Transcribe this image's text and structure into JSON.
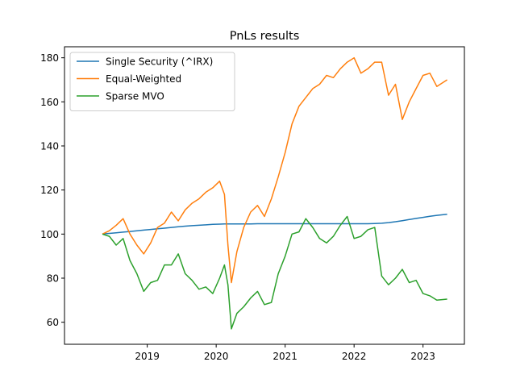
{
  "chart_data": {
    "type": "line",
    "title": "PnLs results",
    "xlabel": "",
    "ylabel": "",
    "x_tick_labels": [
      "2019",
      "2020",
      "2021",
      "2022",
      "2023"
    ],
    "x_ticks": [
      2019.0,
      2020.0,
      2021.0,
      2022.0,
      2023.0
    ],
    "xlim": [
      2017.8,
      2023.6
    ],
    "y_ticks": [
      60,
      80,
      100,
      120,
      140,
      160,
      180
    ],
    "ylim": [
      50,
      185
    ],
    "legend_position": "upper-left",
    "grid": false,
    "x": [
      2018.35,
      2018.45,
      2018.55,
      2018.65,
      2018.75,
      2018.85,
      2018.95,
      2019.05,
      2019.15,
      2019.25,
      2019.35,
      2019.45,
      2019.55,
      2019.65,
      2019.75,
      2019.85,
      2019.95,
      2020.05,
      2020.12,
      2020.17,
      2020.22,
      2020.3,
      2020.4,
      2020.5,
      2020.6,
      2020.7,
      2020.8,
      2020.9,
      2021.0,
      2021.1,
      2021.2,
      2021.3,
      2021.4,
      2021.5,
      2021.6,
      2021.7,
      2021.8,
      2021.9,
      2022.0,
      2022.1,
      2022.2,
      2022.3,
      2022.4,
      2022.5,
      2022.6,
      2022.7,
      2022.8,
      2022.9,
      2023.0,
      2023.1,
      2023.2,
      2023.35
    ],
    "series": [
      {
        "name": "Single Security (^IRX)",
        "color": "#1f77b4",
        "values": [
          100.0,
          100.3,
          100.6,
          100.9,
          101.2,
          101.5,
          101.8,
          102.1,
          102.4,
          102.7,
          103.0,
          103.3,
          103.6,
          103.8,
          104.0,
          104.2,
          104.4,
          104.5,
          104.6,
          104.6,
          104.6,
          104.6,
          104.6,
          104.6,
          104.7,
          104.7,
          104.7,
          104.7,
          104.7,
          104.7,
          104.7,
          104.7,
          104.7,
          104.7,
          104.7,
          104.7,
          104.7,
          104.7,
          104.7,
          104.7,
          104.7,
          104.8,
          104.9,
          105.2,
          105.6,
          106.1,
          106.6,
          107.1,
          107.6,
          108.1,
          108.5,
          109.0
        ]
      },
      {
        "name": "Equal-Weighted",
        "color": "#ff7f0e",
        "values": [
          100.0,
          101.5,
          104.0,
          107.0,
          100.0,
          95.0,
          91.0,
          96.0,
          103.0,
          105.0,
          110.0,
          106.0,
          111.0,
          114.0,
          116.0,
          119.0,
          121.0,
          124.0,
          118.0,
          95.0,
          78.0,
          92.0,
          103.0,
          110.0,
          113.0,
          108.0,
          116.0,
          126.0,
          137.0,
          150.0,
          158.0,
          162.0,
          166.0,
          168.0,
          172.0,
          171.0,
          175.0,
          178.0,
          180.0,
          173.0,
          175.0,
          178.0,
          178.0,
          163.0,
          168.0,
          152.0,
          160.0,
          166.0,
          172.0,
          173.0,
          167.0,
          170.0
        ]
      },
      {
        "name": "Sparse MVO",
        "color": "#2ca02c",
        "values": [
          100.0,
          99.0,
          95.0,
          98.0,
          88.0,
          82.0,
          74.0,
          78.0,
          79.0,
          86.0,
          86.0,
          91.0,
          82.0,
          79.0,
          75.0,
          76.0,
          73.0,
          80.0,
          86.0,
          77.0,
          57.0,
          64.0,
          67.0,
          71.0,
          74.0,
          68.0,
          69.0,
          82.0,
          90.0,
          100.0,
          101.0,
          107.0,
          103.0,
          98.0,
          96.0,
          99.0,
          104.0,
          108.0,
          98.0,
          99.0,
          102.0,
          103.0,
          81.0,
          77.0,
          80.0,
          84.0,
          78.0,
          79.0,
          73.0,
          72.0,
          70.0,
          70.5
        ]
      }
    ]
  }
}
